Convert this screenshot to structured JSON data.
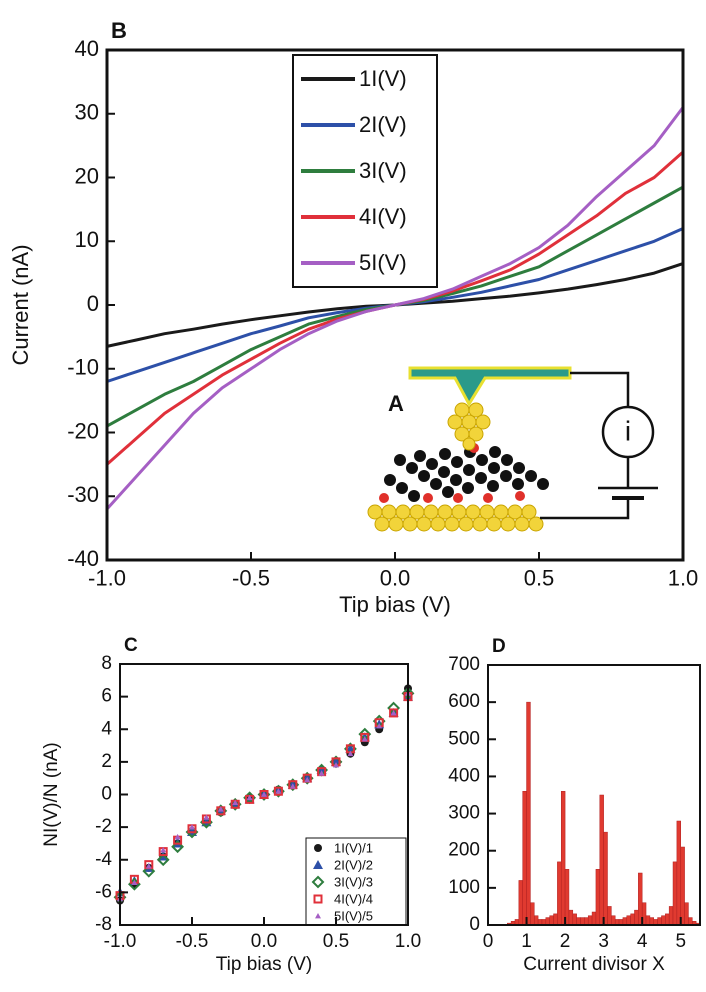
{
  "chart_data": [
    {
      "type": "line",
      "panel_label": "B",
      "x_label": "Tip bias (V)",
      "y_label": "Current (nA)",
      "x": [
        -1.0,
        -0.9,
        -0.8,
        -0.7,
        -0.6,
        -0.5,
        -0.4,
        -0.3,
        -0.2,
        -0.1,
        0.0,
        0.1,
        0.2,
        0.3,
        0.4,
        0.5,
        0.6,
        0.7,
        0.8,
        0.9,
        1.0
      ],
      "series": [
        {
          "name": "1I(V)",
          "color": "#1a1a1a",
          "values": [
            -6.5,
            -5.5,
            -4.5,
            -3.8,
            -3,
            -2.3,
            -1.7,
            -1.1,
            -0.6,
            -0.2,
            0,
            0.3,
            0.6,
            1,
            1.4,
            1.9,
            2.5,
            3.2,
            4,
            5,
            6.5
          ]
        },
        {
          "name": "2I(V)",
          "color": "#2d50a8",
          "values": [
            -12,
            -10.5,
            -9,
            -7.5,
            -6,
            -4.5,
            -3.3,
            -2,
            -1.2,
            -0.5,
            0,
            0.5,
            1.2,
            2,
            3,
            4,
            5.5,
            7,
            8.5,
            10,
            12
          ]
        },
        {
          "name": "3I(V)",
          "color": "#2e7d3e",
          "values": [
            -19,
            -16.5,
            -14,
            -12,
            -9.5,
            -7,
            -5,
            -3,
            -1.8,
            -0.7,
            0,
            0.7,
            1.8,
            3,
            4.5,
            6,
            8.5,
            11,
            13.5,
            16,
            18.5
          ]
        },
        {
          "name": "4I(V)",
          "color": "#e0303a",
          "values": [
            -25,
            -21,
            -17,
            -14,
            -11,
            -8.5,
            -6,
            -3.8,
            -2.2,
            -1,
            0,
            0.9,
            2.2,
            3.8,
            5.5,
            8,
            11,
            14,
            17.5,
            20,
            24
          ]
        },
        {
          "name": "5I(V)",
          "color": "#a55fc4",
          "values": [
            -32,
            -27,
            -22,
            -17,
            -13,
            -10,
            -7,
            -4.5,
            -2.5,
            -1,
            0,
            1,
            2.5,
            4.5,
            6.5,
            9,
            12.5,
            17,
            21,
            25,
            31
          ]
        }
      ],
      "xlim": [
        -1.0,
        1.0
      ],
      "xticks": [
        {
          "value": -1,
          "label": "-1.0"
        },
        -0.5,
        {
          "value": 0,
          "label": "0.0"
        },
        0.5,
        {
          "value": 1,
          "label": "1.0"
        }
      ],
      "ylim": [
        -40,
        40
      ],
      "yticks": [
        40,
        30,
        20,
        10,
        0,
        -10,
        -20,
        -30,
        -40
      ],
      "legend": "top",
      "inset": {
        "label": "A",
        "meter": "i"
      }
    },
    {
      "type": "scatter",
      "panel_label": "C",
      "x_label": "Tip bias (V)",
      "y_label": "NI(V)/N (nA)",
      "x": [
        -1.0,
        -0.9,
        -0.8,
        -0.7,
        -0.6,
        -0.5,
        -0.4,
        -0.3,
        -0.2,
        -0.1,
        0.0,
        0.1,
        0.2,
        0.3,
        0.4,
        0.5,
        0.6,
        0.7,
        0.8,
        0.9,
        1.0
      ],
      "series": [
        {
          "name": "1I(V)/1",
          "color": "#1a1a1a",
          "marker": "circle",
          "values": [
            -6.5,
            -5.5,
            -4.5,
            -3.8,
            -3,
            -2.3,
            -1.7,
            -1.1,
            -0.6,
            -0.2,
            0,
            0.3,
            0.6,
            1,
            1.4,
            1.9,
            2.5,
            3.2,
            4,
            5,
            6.5
          ]
        },
        {
          "name": "2I(V)/2",
          "color": "#2d50a8",
          "marker": "triangle",
          "values": [
            -6,
            -5.3,
            -4.5,
            -3.8,
            -3,
            -2.3,
            -1.7,
            -1,
            -0.6,
            -0.3,
            0,
            0.3,
            0.6,
            1,
            1.5,
            2,
            2.8,
            3.5,
            4.3,
            5,
            6
          ]
        },
        {
          "name": "3I(V)/3",
          "color": "#2e7d3e",
          "marker": "diamond",
          "values": [
            -6.3,
            -5.5,
            -4.7,
            -4,
            -3.2,
            -2.3,
            -1.7,
            -1,
            -0.6,
            -0.2,
            0,
            0.2,
            0.6,
            1,
            1.5,
            2,
            2.8,
            3.7,
            4.5,
            5.3,
            6.2
          ]
        },
        {
          "name": "4I(V)/4",
          "color": "#e0303a",
          "marker": "square",
          "values": [
            -6.2,
            -5.2,
            -4.3,
            -3.5,
            -2.8,
            -2.1,
            -1.5,
            -1,
            -0.6,
            -0.3,
            0,
            0.2,
            0.6,
            1,
            1.4,
            2,
            2.8,
            3.5,
            4.4,
            5,
            6
          ]
        },
        {
          "name": "5I(V)/5",
          "color": "#a55fc4",
          "marker": "small-triangle",
          "values": [
            -6.4,
            -5.4,
            -4.4,
            -3.4,
            -2.6,
            -2,
            -1.4,
            -0.9,
            -0.5,
            -0.2,
            0,
            0.2,
            0.5,
            0.9,
            1.3,
            1.8,
            2.5,
            3.4,
            4.2,
            5,
            6.2
          ]
        }
      ],
      "xlim": [
        -1.0,
        1.0
      ],
      "xticks": [
        {
          "value": -1,
          "label": "-1.0"
        },
        -0.5,
        {
          "value": 0,
          "label": "0.0"
        },
        0.5,
        {
          "value": 1,
          "label": "1.0"
        }
      ],
      "ylim": [
        -8,
        8
      ],
      "yticks": [
        8,
        6,
        4,
        2,
        0,
        -2,
        -4,
        -6,
        -8
      ],
      "legend": "bottom-right"
    },
    {
      "type": "histogram",
      "panel_label": "D",
      "x_label": "Current divisor X",
      "color": "#e03a30",
      "bins": [
        0.5,
        0.6,
        0.7,
        0.8,
        0.9,
        1.0,
        1.1,
        1.2,
        1.3,
        1.4,
        1.5,
        1.6,
        1.7,
        1.8,
        1.9,
        2.0,
        2.1,
        2.2,
        2.3,
        2.4,
        2.5,
        2.6,
        2.7,
        2.8,
        2.9,
        3.0,
        3.1,
        3.2,
        3.3,
        3.4,
        3.5,
        3.6,
        3.7,
        3.8,
        3.9,
        4.0,
        4.1,
        4.2,
        4.3,
        4.4,
        4.5,
        4.6,
        4.7,
        4.8,
        4.9,
        5.0,
        5.1,
        5.2,
        5.3,
        5.4,
        5.5
      ],
      "values": [
        5,
        10,
        15,
        120,
        360,
        600,
        60,
        25,
        15,
        15,
        20,
        25,
        30,
        170,
        360,
        150,
        40,
        30,
        20,
        20,
        20,
        25,
        35,
        150,
        350,
        250,
        50,
        25,
        15,
        15,
        20,
        25,
        30,
        40,
        140,
        60,
        25,
        20,
        15,
        20,
        25,
        30,
        50,
        170,
        280,
        210,
        60,
        20,
        10,
        5
      ],
      "xlim": [
        0,
        5.5
      ],
      "xticks": [
        0,
        1,
        2,
        3,
        4,
        5
      ],
      "ylim": [
        0,
        700
      ],
      "yticks": [
        0,
        100,
        200,
        300,
        400,
        500,
        600,
        700
      ]
    }
  ]
}
